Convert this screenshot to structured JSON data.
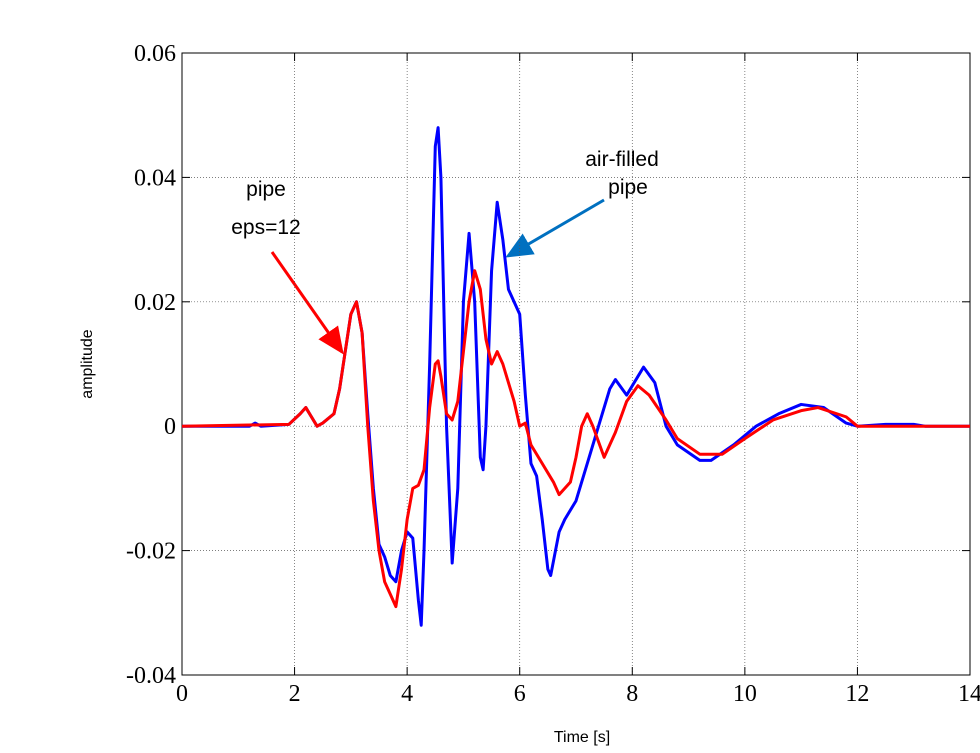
{
  "chart_data": {
    "type": "line",
    "xlabel": "Time [s]",
    "ylabel": "amplitude",
    "xlim": [
      0,
      14
    ],
    "xticks": [
      0,
      2,
      4,
      6,
      8,
      10,
      12,
      14
    ],
    "ylim": [
      -0.04,
      0.06
    ],
    "yticks": [
      -0.04,
      -0.02,
      0,
      0.02,
      0.04,
      0.06
    ],
    "grid": true,
    "annotations": [
      {
        "lines": [
          "pipe",
          "eps=12"
        ],
        "color": "#ff0000"
      },
      {
        "lines": [
          "air-filled",
          "pipe"
        ],
        "color": "#0070c0"
      }
    ],
    "series": [
      {
        "name": "air-filled pipe",
        "color": "#0000ff",
        "x": [
          0,
          1.2,
          1.3,
          1.4,
          1.9,
          2.1,
          2.2,
          2.3,
          2.4,
          2.5,
          2.7,
          2.8,
          2.9,
          3.0,
          3.1,
          3.2,
          3.3,
          3.4,
          3.5,
          3.6,
          3.7,
          3.8,
          3.9,
          4.0,
          4.1,
          4.2,
          4.25,
          4.3,
          4.4,
          4.5,
          4.55,
          4.6,
          4.7,
          4.8,
          4.9,
          5.0,
          5.1,
          5.2,
          5.3,
          5.35,
          5.4,
          5.5,
          5.6,
          5.7,
          5.8,
          6.0,
          6.1,
          6.2,
          6.3,
          6.4,
          6.5,
          6.55,
          6.7,
          6.8,
          7.0,
          7.2,
          7.4,
          7.6,
          7.7,
          7.9,
          8.1,
          8.2,
          8.4,
          8.6,
          8.8,
          9.2,
          9.4,
          9.8,
          10.2,
          10.6,
          11.0,
          11.4,
          11.8,
          12.0,
          12.5,
          13.0,
          13.2,
          14
        ],
        "values": [
          0,
          0,
          0.0005,
          0,
          0.0003,
          0.002,
          0.003,
          0.0015,
          0,
          0.0005,
          0.002,
          0.006,
          0.012,
          0.018,
          0.02,
          0.015,
          0.002,
          -0.01,
          -0.019,
          -0.021,
          -0.024,
          -0.025,
          -0.02,
          -0.017,
          -0.018,
          -0.028,
          -0.032,
          -0.02,
          0.01,
          0.045,
          0.048,
          0.04,
          0,
          -0.022,
          -0.01,
          0.02,
          0.031,
          0.02,
          -0.005,
          -0.007,
          0,
          0.025,
          0.036,
          0.03,
          0.022,
          0.018,
          0.005,
          -0.006,
          -0.008,
          -0.015,
          -0.023,
          -0.024,
          -0.017,
          -0.015,
          -0.012,
          -0.006,
          0,
          0.006,
          0.0075,
          0.005,
          0.008,
          0.0095,
          0.007,
          0,
          -0.003,
          -0.0055,
          -0.0055,
          -0.003,
          0,
          0.002,
          0.0035,
          0.003,
          0.0005,
          0,
          0.0003,
          0.0003,
          0,
          0
        ]
      },
      {
        "name": "pipe eps=12",
        "color": "#ff0000",
        "x": [
          0,
          1.9,
          2.1,
          2.2,
          2.3,
          2.4,
          2.5,
          2.7,
          2.8,
          2.9,
          3.0,
          3.1,
          3.2,
          3.3,
          3.4,
          3.5,
          3.6,
          3.7,
          3.8,
          3.9,
          4.0,
          4.1,
          4.2,
          4.3,
          4.4,
          4.5,
          4.55,
          4.6,
          4.7,
          4.8,
          4.9,
          5.0,
          5.1,
          5.2,
          5.3,
          5.4,
          5.5,
          5.6,
          5.7,
          5.9,
          6.0,
          6.1,
          6.2,
          6.4,
          6.6,
          6.7,
          6.9,
          7.0,
          7.1,
          7.2,
          7.3,
          7.5,
          7.7,
          7.9,
          8.1,
          8.3,
          8.6,
          8.8,
          9.2,
          9.6,
          10.0,
          10.5,
          11.0,
          11.3,
          11.8,
          12.0,
          14
        ],
        "values": [
          0,
          0.0003,
          0.002,
          0.003,
          0.0015,
          0,
          0.0005,
          0.002,
          0.006,
          0.012,
          0.018,
          0.02,
          0.015,
          0,
          -0.012,
          -0.02,
          -0.025,
          -0.027,
          -0.029,
          -0.023,
          -0.015,
          -0.01,
          -0.0095,
          -0.007,
          0.003,
          0.01,
          0.0105,
          0.008,
          0.002,
          0.001,
          0.004,
          0.012,
          0.02,
          0.025,
          0.022,
          0.014,
          0.01,
          0.012,
          0.01,
          0.004,
          0,
          0.0005,
          -0.003,
          -0.006,
          -0.009,
          -0.011,
          -0.009,
          -0.005,
          0,
          0.002,
          0,
          -0.005,
          -0.001,
          0.004,
          0.0065,
          0.005,
          0.001,
          -0.002,
          -0.0045,
          -0.0045,
          -0.002,
          0.001,
          0.0025,
          0.003,
          0.0015,
          0,
          0
        ]
      }
    ]
  }
}
